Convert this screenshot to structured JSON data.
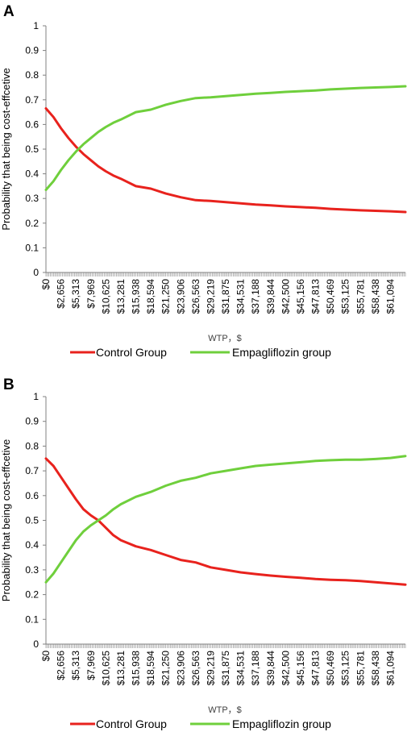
{
  "colors": {
    "control": "#e8221d",
    "empagliflozin": "#6fcf3c",
    "axis": "#808080",
    "text": "#000000"
  },
  "xtick_labels": [
    "$0",
    "$2,656",
    "$5,313",
    "$7,969",
    "$10,625",
    "$13,281",
    "$15,938",
    "$18,594",
    "$21,250",
    "$23,906",
    "$26,563",
    "$29,219",
    "$31,875",
    "$34,531",
    "$37,188",
    "$39,844",
    "$42,500",
    "$45,156",
    "$47,813",
    "$50,469",
    "$53,125",
    "$55,781",
    "$58,438",
    "$61,094"
  ],
  "ytick_labels": [
    "0",
    "0.1",
    "0.2",
    "0.3",
    "0.4",
    "0.5",
    "0.6",
    "0.7",
    "0.8",
    "0.9",
    "1"
  ],
  "chart_data": [
    {
      "panel_label": "A",
      "type": "line",
      "xlabel": "WTP，$",
      "ylabel": "Probability that being cost-effcetive",
      "xlim": [
        0,
        63750
      ],
      "ylim": [
        0,
        1
      ],
      "grid": false,
      "legend_position": "bottom",
      "x": [
        0,
        1328,
        2656,
        3984,
        5313,
        6641,
        7969,
        9297,
        10625,
        11953,
        13281,
        15938,
        18594,
        21250,
        23906,
        26563,
        29219,
        31875,
        34531,
        37188,
        39844,
        42500,
        45156,
        47813,
        50469,
        53125,
        55781,
        58438,
        61094,
        63750
      ],
      "series": [
        {
          "name": "Control Group",
          "color_key": "control",
          "values": [
            0.665,
            0.63,
            0.585,
            0.545,
            0.51,
            0.48,
            0.455,
            0.43,
            0.41,
            0.393,
            0.38,
            0.35,
            0.34,
            0.32,
            0.305,
            0.293,
            0.29,
            0.285,
            0.28,
            0.275,
            0.272,
            0.268,
            0.265,
            0.262,
            0.258,
            0.255,
            0.252,
            0.25,
            0.248,
            0.245
          ]
        },
        {
          "name": "Empagliflozin group",
          "color_key": "empagliflozin",
          "values": [
            0.335,
            0.37,
            0.415,
            0.455,
            0.49,
            0.52,
            0.545,
            0.57,
            0.59,
            0.607,
            0.62,
            0.65,
            0.66,
            0.68,
            0.695,
            0.707,
            0.71,
            0.715,
            0.72,
            0.725,
            0.728,
            0.732,
            0.735,
            0.738,
            0.742,
            0.745,
            0.748,
            0.75,
            0.752,
            0.755
          ]
        }
      ]
    },
    {
      "panel_label": "B",
      "type": "line",
      "xlabel": "WTP，$",
      "ylabel": "Probability that being cost-effcetive",
      "xlim": [
        0,
        63750
      ],
      "ylim": [
        0,
        1
      ],
      "grid": false,
      "legend_position": "bottom",
      "x": [
        0,
        1328,
        2656,
        3984,
        5313,
        6641,
        7969,
        9297,
        10625,
        11953,
        13281,
        15938,
        18594,
        21250,
        23906,
        26563,
        29219,
        31875,
        34531,
        37188,
        39844,
        42500,
        45156,
        47813,
        50469,
        53125,
        55781,
        58438,
        61094,
        63750
      ],
      "series": [
        {
          "name": "Control Group",
          "color_key": "control",
          "values": [
            0.75,
            0.72,
            0.675,
            0.63,
            0.585,
            0.545,
            0.52,
            0.5,
            0.47,
            0.44,
            0.42,
            0.395,
            0.38,
            0.36,
            0.34,
            0.33,
            0.31,
            0.3,
            0.29,
            0.283,
            0.277,
            0.272,
            0.268,
            0.263,
            0.26,
            0.258,
            0.255,
            0.25,
            0.245,
            0.24
          ]
        },
        {
          "name": "Empagliflozin group",
          "color_key": "empagliflozin",
          "values": [
            0.25,
            0.285,
            0.33,
            0.375,
            0.42,
            0.455,
            0.48,
            0.5,
            0.52,
            0.545,
            0.565,
            0.595,
            0.615,
            0.64,
            0.66,
            0.672,
            0.69,
            0.7,
            0.71,
            0.72,
            0.725,
            0.73,
            0.735,
            0.74,
            0.743,
            0.745,
            0.745,
            0.748,
            0.752,
            0.76
          ]
        }
      ]
    }
  ]
}
